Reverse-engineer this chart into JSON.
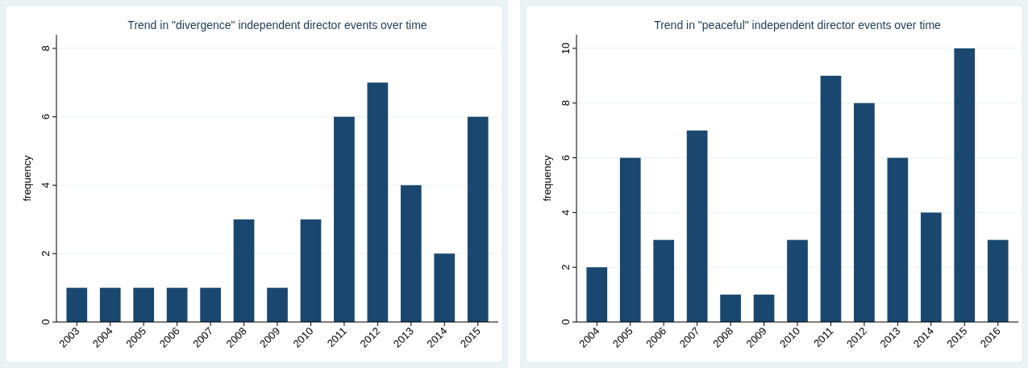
{
  "chart_data": [
    {
      "type": "bar",
      "title": "Trend in \"divergence\" independent director events over time",
      "ylabel": "frequency",
      "categories": [
        "2003",
        "2004",
        "2005",
        "2006",
        "2007",
        "2008",
        "2009",
        "2010",
        "2011",
        "2012",
        "2013",
        "2014",
        "2015"
      ],
      "values": [
        1,
        1,
        1,
        1,
        1,
        3,
        1,
        3,
        6,
        7,
        4,
        2,
        6
      ],
      "color": "#1a476f",
      "ylim": [
        0,
        8.4
      ],
      "yticks": [
        0,
        2,
        4,
        6,
        8
      ],
      "grid": "y"
    },
    {
      "type": "bar",
      "title": "Trend in \"peaceful\" independent director events over time",
      "ylabel": "frequency",
      "categories": [
        "2004",
        "2005",
        "2006",
        "2007",
        "2008",
        "2009",
        "2010",
        "2011",
        "2012",
        "2013",
        "2014",
        "2015",
        "2016"
      ],
      "values": [
        2,
        6,
        3,
        7,
        1,
        1,
        3,
        9,
        8,
        6,
        4,
        10,
        3
      ],
      "color": "#1a476f",
      "ylim": [
        0,
        10.5
      ],
      "yticks": [
        0,
        2,
        4,
        6,
        8,
        10
      ],
      "grid": "y"
    }
  ]
}
